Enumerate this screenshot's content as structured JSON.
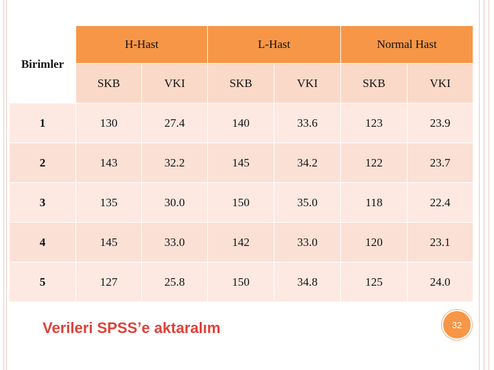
{
  "table": {
    "corner_label": "Birimler",
    "groups": [
      "H-Hast",
      "L-Hast",
      "Normal Hast"
    ],
    "subheaders": [
      "SKB",
      "VKI",
      "SKB",
      "VKI",
      "SKB",
      "VKI"
    ],
    "rows": [
      {
        "label": "1",
        "values": [
          "130",
          "27.4",
          "140",
          "33.6",
          "123",
          "23.9"
        ]
      },
      {
        "label": "2",
        "values": [
          "143",
          "32.2",
          "145",
          "34.2",
          "122",
          "23.7"
        ]
      },
      {
        "label": "3",
        "values": [
          "135",
          "30.0",
          "150",
          "35.0",
          "118",
          "22.4"
        ]
      },
      {
        "label": "4",
        "values": [
          "145",
          "33.0",
          "142",
          "33.0",
          "120",
          "23.1"
        ]
      },
      {
        "label": "5",
        "values": [
          "127",
          "25.8",
          "150",
          "34.8",
          "125",
          "24.0"
        ]
      }
    ]
  },
  "caption": "Verileri SPSS’e aktaralım",
  "page_number": "32",
  "colors": {
    "header": "#f79646",
    "subheader": "#fbd9c8",
    "row_light": "#fde9e2",
    "row_dark": "#fbe0d6",
    "caption": "#e0403a"
  }
}
